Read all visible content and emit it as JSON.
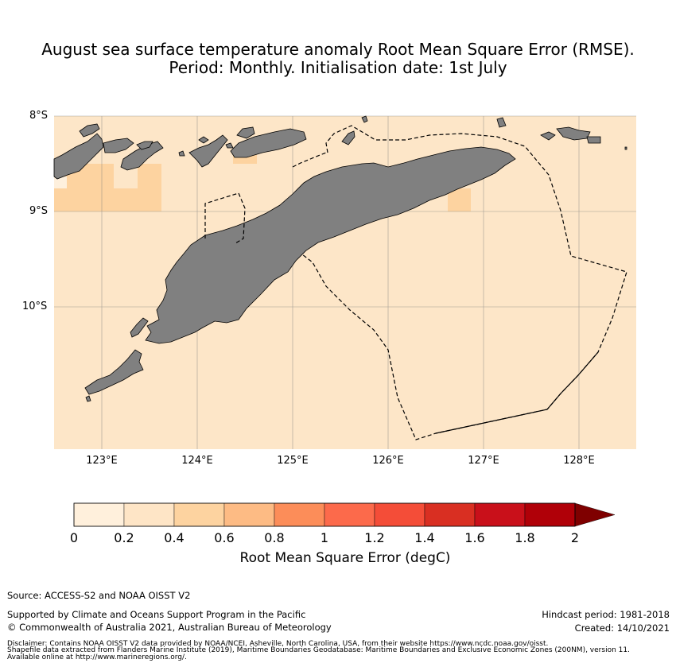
{
  "title": {
    "line1": "August sea surface temperature anomaly Root Mean Square Error (RMSE).",
    "line2": "Period: Monthly. Initialisation date: 1st July"
  },
  "map": {
    "lat_labels": [
      "8°S",
      "9°S",
      "10°S"
    ],
    "lon_labels": [
      "123°E",
      "124°E",
      "125°E",
      "126°E",
      "127°E",
      "128°E"
    ],
    "colors": {
      "background_ocean": "#fde6c8",
      "land": "#808080",
      "higher_error": "#fdd3a0",
      "lower_error": "#fef0dd",
      "gridline": "#7f7f7f"
    },
    "icons": [
      "eez-boundary-dashed",
      "coastline"
    ]
  },
  "colorbar": {
    "ticks": [
      "0",
      "0.2",
      "0.4",
      "0.6",
      "0.8",
      "1",
      "1.2",
      "1.4",
      "1.6",
      "1.8",
      "2"
    ],
    "colors": [
      "#fff0dc",
      "#fee5c6",
      "#fdd3a0",
      "#fdbb84",
      "#fc8d59",
      "#fc6a4b",
      "#f44d38",
      "#d92f22",
      "#c9101a",
      "#b00008",
      "#7f0000"
    ],
    "label": "Root Mean Square Error (degC)",
    "extend": "max"
  },
  "footer": {
    "source": "Source: ACCESS-S2 and NOAA OISST V2",
    "supported": "Supported by Climate and Oceans Support Program in the Pacific",
    "copyright": "© Commonwealth of Australia 2021, Australian Bureau of Meteorology",
    "hindcast": "Hindcast period: 1981-2018",
    "created": "Created: 14/10/2021",
    "disclaimer1": "Disclaimer: Contains NOAA OISST V2 data provided by NOAA/NCEI, Asheville, North Carolina, USA, from their website https://www.ncdc.noaa.gov/oisst.",
    "disclaimer2": "Shapefile data extracted from Flanders Marine Institute (2019), Maritime Boundaries Geodatabase: Maritime Boundaries and Exclusive Economic Zones (200NM), version 11.",
    "disclaimer3": "Available online at http://www.marineregions.org/."
  }
}
